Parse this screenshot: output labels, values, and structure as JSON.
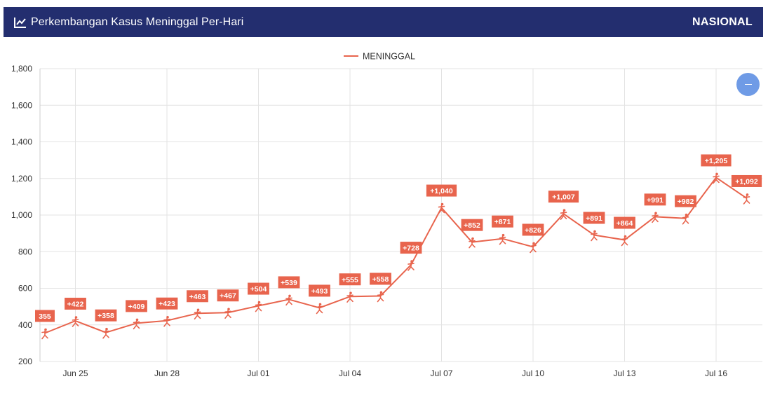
{
  "header": {
    "title": "Perkembangan Kasus Meninggal Per-Hari",
    "region": "NASIONAL",
    "icon": "line-chart-icon"
  },
  "colors": {
    "header_bg": "#232e6f",
    "series": "#e8644d",
    "zoom_button": "#6f9be6"
  },
  "zoom_button": {
    "icon": "minus-icon"
  },
  "chart_data": {
    "type": "line",
    "legend": {
      "position": "top-center",
      "entries": [
        "MENINGGAL"
      ]
    },
    "grid": true,
    "ylim": [
      200,
      1800
    ],
    "yticks": [
      "200",
      "400",
      "600",
      "800",
      "1,000",
      "1,200",
      "1,400",
      "1,600",
      "1,800"
    ],
    "xticks": [
      {
        "index": 1,
        "label": "Jun 25"
      },
      {
        "index": 4,
        "label": "Jun 28"
      },
      {
        "index": 7,
        "label": "Jul 01"
      },
      {
        "index": 10,
        "label": "Jul 04"
      },
      {
        "index": 13,
        "label": "Jul 07"
      },
      {
        "index": 16,
        "label": "Jul 10"
      },
      {
        "index": 19,
        "label": "Jul 13"
      },
      {
        "index": 22,
        "label": "Jul 16"
      }
    ],
    "series": [
      {
        "name": "MENINGGAL",
        "x": [
          "Jun 24",
          "Jun 25",
          "Jun 26",
          "Jun 27",
          "Jun 28",
          "Jun 29",
          "Jun 30",
          "Jul 01",
          "Jul 02",
          "Jul 03",
          "Jul 04",
          "Jul 05",
          "Jul 06",
          "Jul 07",
          "Jul 08",
          "Jul 09",
          "Jul 10",
          "Jul 11",
          "Jul 12",
          "Jul 13",
          "Jul 14",
          "Jul 15",
          "Jul 16",
          "Jul 17"
        ],
        "values": [
          355,
          422,
          358,
          409,
          423,
          463,
          467,
          504,
          539,
          493,
          555,
          558,
          728,
          1040,
          852,
          871,
          826,
          1007,
          891,
          864,
          991,
          982,
          1205,
          1092
        ],
        "labels": [
          "355",
          "+422",
          "+358",
          "+409",
          "+423",
          "+463",
          "+467",
          "+504",
          "+539",
          "+493",
          "+555",
          "+558",
          "+728",
          "+1,040",
          "+852",
          "+871",
          "+826",
          "+1,007",
          "+891",
          "+864",
          "+991",
          "+982",
          "+1,205",
          "+1,092"
        ]
      }
    ]
  }
}
